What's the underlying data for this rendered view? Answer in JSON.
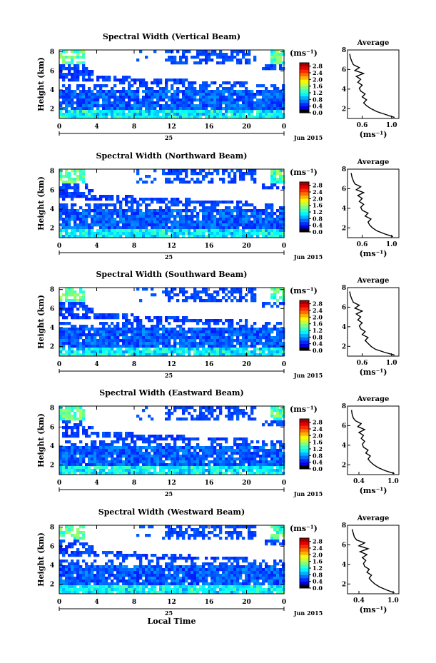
{
  "figure": {
    "x_axis_label": "Local Time",
    "date_label": "Jun 2015",
    "day_label": "25",
    "unit_label": "(ms⁻¹)",
    "average_title": "Average",
    "colorbar_ticks": [
      "0.0",
      "0.4",
      "0.8",
      "1.2",
      "1.6",
      "2.0",
      "2.4",
      "2.8"
    ]
  },
  "chart_data": [
    {
      "type": "heatmap",
      "title": "Spectral Width (Vertical Beam)",
      "ylabel": "Height (km)",
      "x_ticks": [
        "0",
        "4",
        "8",
        "12",
        "16",
        "20",
        "0"
      ],
      "y_ticks": [
        "2",
        "4",
        "6",
        "8"
      ],
      "xlim": [
        0,
        24
      ],
      "ylim": [
        1,
        8.2
      ],
      "value_range": [
        0.0,
        3.0
      ],
      "colormap": "jet",
      "average_profile": {
        "title": "Average",
        "xlabel": "(ms⁻¹)",
        "x_ticks": [
          "0.6",
          "1.0"
        ],
        "xlim": [
          0.4,
          1.1
        ],
        "y_ticks": [
          "2",
          "4",
          "6",
          "8"
        ],
        "ylim": [
          1,
          8
        ],
        "height": [
          1.1,
          1.4,
          1.7,
          2.0,
          2.3,
          2.6,
          2.9,
          3.2,
          3.5,
          3.8,
          4.1,
          4.4,
          4.7,
          5.0,
          5.3,
          5.6,
          5.9,
          6.2,
          6.5,
          6.8,
          7.2,
          7.6
        ],
        "value": [
          1.04,
          0.92,
          0.8,
          0.72,
          0.66,
          0.62,
          0.66,
          0.6,
          0.64,
          0.58,
          0.56,
          0.6,
          0.54,
          0.58,
          0.52,
          0.62,
          0.5,
          0.56,
          0.48,
          0.46,
          0.44,
          0.43
        ]
      }
    },
    {
      "type": "heatmap",
      "title": "Spectral Width (Northward Beam)",
      "ylabel": "Height (km)",
      "x_ticks": [
        "0",
        "4",
        "8",
        "12",
        "16",
        "20",
        "0"
      ],
      "y_ticks": [
        "2",
        "4",
        "6",
        "8"
      ],
      "xlim": [
        0,
        24
      ],
      "ylim": [
        1,
        8.2
      ],
      "value_range": [
        0.0,
        3.0
      ],
      "colormap": "jet",
      "average_profile": {
        "title": "Average",
        "xlabel": "(ms⁻¹)",
        "x_ticks": [
          "0.6",
          "1.0"
        ],
        "xlim": [
          0.4,
          1.1
        ],
        "y_ticks": [
          "2",
          "4",
          "6",
          "8"
        ],
        "ylim": [
          1,
          8
        ],
        "height": [
          1.1,
          1.4,
          1.7,
          2.0,
          2.3,
          2.6,
          2.9,
          3.2,
          3.5,
          3.8,
          4.1,
          4.4,
          4.7,
          5.0,
          5.3,
          5.6,
          5.9,
          6.2,
          6.5,
          6.8,
          7.2,
          7.6
        ],
        "value": [
          1.02,
          0.9,
          0.8,
          0.74,
          0.7,
          0.68,
          0.72,
          0.64,
          0.68,
          0.6,
          0.58,
          0.62,
          0.56,
          0.6,
          0.54,
          0.62,
          0.52,
          0.58,
          0.5,
          0.48,
          0.46,
          0.45
        ]
      }
    },
    {
      "type": "heatmap",
      "title": "Spectral Width (Southward Beam)",
      "ylabel": "Height (km)",
      "x_ticks": [
        "0",
        "4",
        "8",
        "12",
        "16",
        "20",
        "0"
      ],
      "y_ticks": [
        "2",
        "4",
        "6",
        "8"
      ],
      "xlim": [
        0,
        24
      ],
      "ylim": [
        1,
        8.2
      ],
      "value_range": [
        0.0,
        3.0
      ],
      "colormap": "jet",
      "average_profile": {
        "title": "Average",
        "xlabel": "(ms⁻¹)",
        "x_ticks": [
          "0.6",
          "1.0"
        ],
        "xlim": [
          0.4,
          1.1
        ],
        "y_ticks": [
          "2",
          "4",
          "6",
          "8"
        ],
        "ylim": [
          1,
          8
        ],
        "height": [
          1.1,
          1.4,
          1.7,
          2.0,
          2.3,
          2.6,
          2.9,
          3.2,
          3.5,
          3.8,
          4.1,
          4.4,
          4.7,
          5.0,
          5.3,
          5.6,
          5.9,
          6.2,
          6.5,
          6.8,
          7.2,
          7.6
        ],
        "value": [
          1.04,
          0.9,
          0.78,
          0.72,
          0.68,
          0.64,
          0.68,
          0.6,
          0.64,
          0.58,
          0.56,
          0.6,
          0.54,
          0.58,
          0.52,
          0.6,
          0.5,
          0.56,
          0.48,
          0.46,
          0.44,
          0.43
        ]
      }
    },
    {
      "type": "heatmap",
      "title": "Spectral Width (Eastward Beam)",
      "ylabel": "Height (km)",
      "x_ticks": [
        "0",
        "4",
        "8",
        "12",
        "16",
        "20",
        "0"
      ],
      "y_ticks": [
        "2",
        "4",
        "6",
        "8"
      ],
      "xlim": [
        0,
        24
      ],
      "ylim": [
        1,
        8.2
      ],
      "value_range": [
        0.0,
        3.0
      ],
      "colormap": "jet",
      "average_profile": {
        "title": "Average",
        "xlabel": "(ms⁻¹)",
        "x_ticks": [
          "0.4",
          "1.0"
        ],
        "xlim": [
          0.2,
          1.1
        ],
        "y_ticks": [
          "2",
          "4",
          "6",
          "8"
        ],
        "ylim": [
          1,
          8
        ],
        "height": [
          1.1,
          1.4,
          1.7,
          2.0,
          2.3,
          2.6,
          2.9,
          3.2,
          3.5,
          3.8,
          4.1,
          4.4,
          4.7,
          5.0,
          5.3,
          5.6,
          5.9,
          6.2,
          6.5,
          6.8,
          7.2,
          7.6
        ],
        "value": [
          1.02,
          0.86,
          0.74,
          0.66,
          0.6,
          0.56,
          0.6,
          0.52,
          0.56,
          0.48,
          0.46,
          0.5,
          0.44,
          0.48,
          0.4,
          0.5,
          0.38,
          0.44,
          0.34,
          0.3,
          0.28,
          0.27
        ]
      }
    },
    {
      "type": "heatmap",
      "title": "Spectral Width (Westward Beam)",
      "ylabel": "Height (km)",
      "x_ticks": [
        "0",
        "4",
        "8",
        "12",
        "16",
        "20",
        "0"
      ],
      "y_ticks": [
        "2",
        "4",
        "6",
        "8"
      ],
      "xlim": [
        0,
        24
      ],
      "ylim": [
        1,
        8.2
      ],
      "value_range": [
        0.0,
        3.0
      ],
      "colormap": "jet",
      "average_profile": {
        "title": "Average",
        "xlabel": "(ms⁻¹)",
        "x_ticks": [
          "0.4",
          "1.0"
        ],
        "xlim": [
          0.2,
          1.1
        ],
        "y_ticks": [
          "2",
          "4",
          "6",
          "8"
        ],
        "ylim": [
          1,
          8
        ],
        "height": [
          1.1,
          1.4,
          1.7,
          2.0,
          2.3,
          2.6,
          2.9,
          3.2,
          3.5,
          3.8,
          4.1,
          4.4,
          4.7,
          5.0,
          5.3,
          5.6,
          5.9,
          6.2,
          6.5,
          6.8,
          7.2,
          7.6
        ],
        "value": [
          1.02,
          0.88,
          0.76,
          0.68,
          0.62,
          0.58,
          0.62,
          0.54,
          0.58,
          0.5,
          0.48,
          0.52,
          0.46,
          0.54,
          0.42,
          0.56,
          0.4,
          0.5,
          0.36,
          0.32,
          0.3,
          0.28
        ]
      }
    }
  ]
}
